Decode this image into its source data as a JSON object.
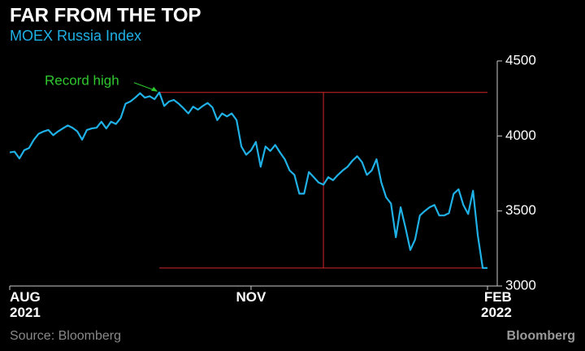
{
  "chart_data": {
    "type": "line",
    "title": "FAR FROM THE TOP",
    "subtitle": "MOEX Russia Index",
    "source": "Source: Bloomberg",
    "brand": "Bloomberg",
    "annotation": "Record high",
    "categories": [
      "AUG\n2021",
      null,
      null,
      null,
      null,
      null,
      null,
      null,
      null,
      null,
      null,
      null,
      null,
      null,
      null,
      null,
      null,
      null,
      null,
      null,
      null,
      null,
      null,
      null,
      null,
      null,
      null,
      null,
      null,
      null,
      null,
      null,
      null,
      null,
      null,
      null,
      null,
      null,
      null,
      null,
      null,
      null,
      null,
      null,
      null,
      null,
      null,
      null,
      null,
      null,
      "NOV",
      null,
      null,
      null,
      null,
      null,
      null,
      null,
      null,
      null,
      null,
      null,
      null,
      null,
      null,
      null,
      null,
      null,
      null,
      null,
      null,
      null,
      null,
      null,
      null,
      null,
      null,
      null,
      null,
      null,
      null,
      null,
      null,
      null,
      null,
      null,
      null,
      null,
      null,
      null,
      null,
      null,
      null,
      null,
      null,
      null,
      null,
      null,
      null,
      "FEB\n2022"
    ],
    "values": [
      3890,
      3895,
      3850,
      3905,
      3920,
      3975,
      4015,
      4030,
      4040,
      4005,
      4030,
      4050,
      4070,
      4055,
      4030,
      3975,
      4040,
      4050,
      4055,
      4095,
      4050,
      4095,
      4080,
      4120,
      4215,
      4230,
      4255,
      4285,
      4255,
      4265,
      4245,
      4290,
      4200,
      4230,
      4240,
      4215,
      4185,
      4150,
      4195,
      4175,
      4200,
      4220,
      4190,
      4105,
      4150,
      4130,
      4150,
      4105,
      3930,
      3875,
      3905,
      3960,
      3795,
      3930,
      3900,
      3940,
      3890,
      3845,
      3770,
      3740,
      3615,
      3615,
      3760,
      3725,
      3690,
      3675,
      3725,
      3705,
      3740,
      3770,
      3795,
      3835,
      3865,
      3825,
      3740,
      3770,
      3845,
      3690,
      3590,
      3550,
      3325,
      3525,
      3390,
      3240,
      3310,
      3470,
      3500,
      3525,
      3540,
      3470,
      3470,
      3485,
      3615,
      3645,
      3540,
      3480,
      3635,
      3335,
      3120,
      3120
    ],
    "color": "#1fb1e6",
    "annotation_color": "#2ec82e",
    "range_color": "#d0262d",
    "ylim": [
      3000,
      4500
    ],
    "yticks": [
      3000,
      3500,
      4000,
      4500
    ]
  }
}
